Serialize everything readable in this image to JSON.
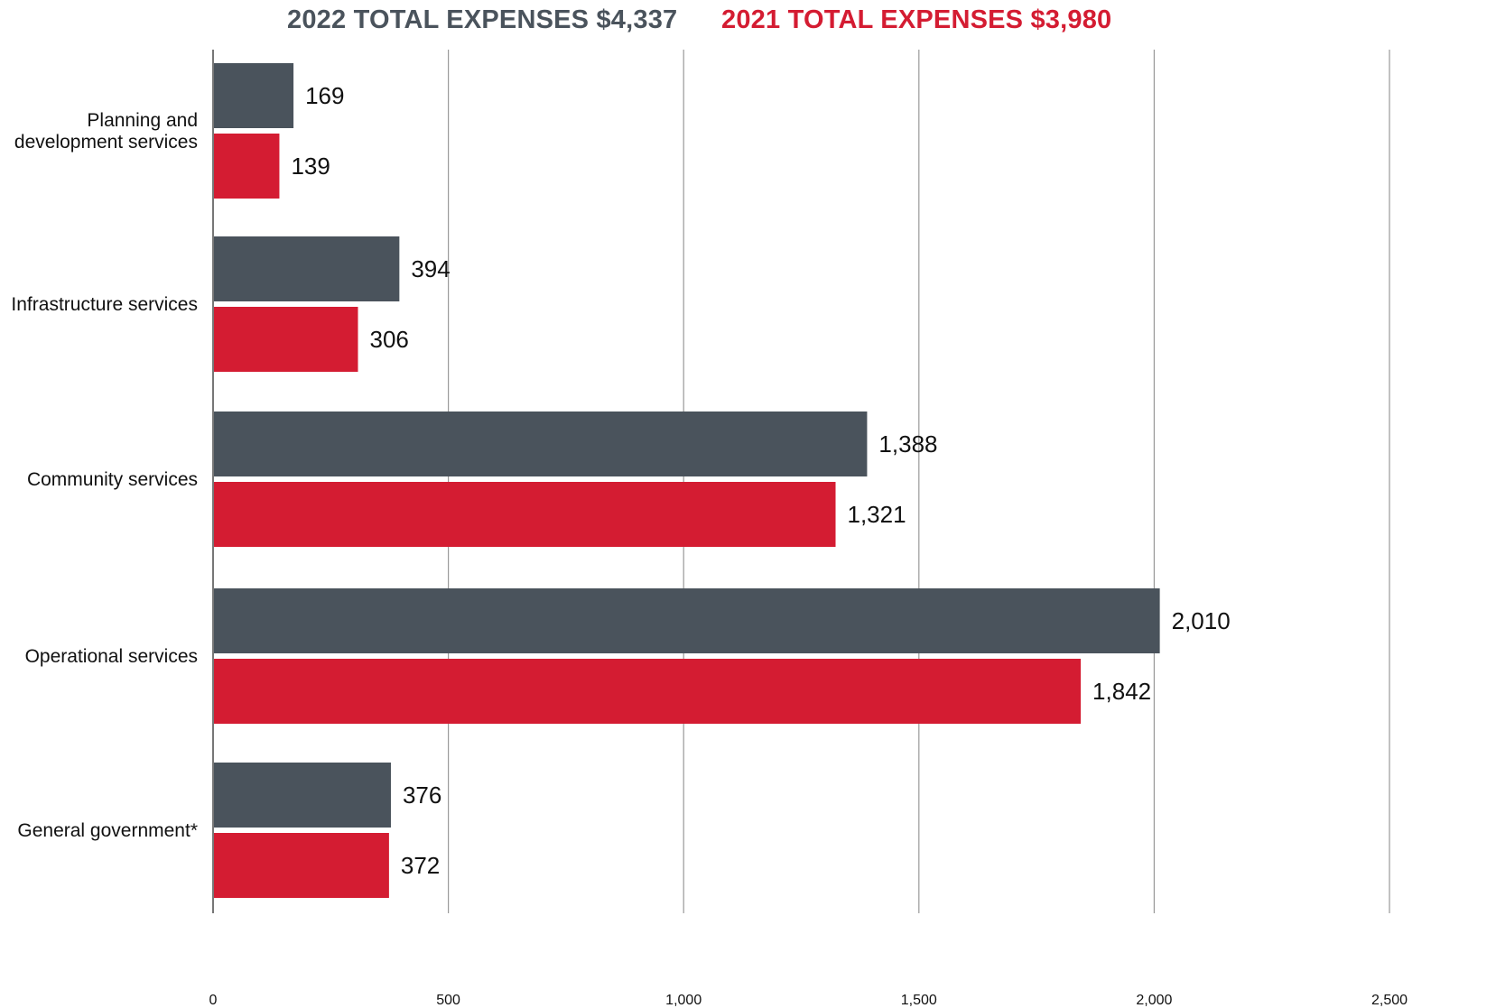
{
  "colors": {
    "series_2022": "#4a535c",
    "series_2021": "#d41c32",
    "gridline": "#9a9a9a",
    "axis": "#555555"
  },
  "chart_data": {
    "type": "bar",
    "orientation": "horizontal",
    "categories": [
      "Planning and development services",
      "Infrastructure services",
      "Community services",
      "Operational services",
      "General government*"
    ],
    "category_label_lines": [
      [
        "Planning and",
        "development services"
      ],
      [
        "Infrastructure services"
      ],
      [
        "Community services"
      ],
      [
        "Operational services"
      ],
      [
        "General government*"
      ]
    ],
    "series": [
      {
        "name": "2022 TOTAL EXPENSES $4,337",
        "color": "#4a535c",
        "values": [
          169,
          394,
          1388,
          2010,
          376
        ],
        "value_labels": [
          "169",
          "394",
          "1,388",
          "2,010",
          "376"
        ]
      },
      {
        "name": "2021 TOTAL EXPENSES $3,980",
        "color": "#d41c32",
        "values": [
          139,
          306,
          1321,
          1842,
          372
        ],
        "value_labels": [
          "139",
          "306",
          "1,321",
          "1,842",
          "372"
        ]
      }
    ],
    "xlim": [
      0,
      2500
    ],
    "xticks": [
      0,
      500,
      1000,
      1500,
      2000,
      2500
    ],
    "xtick_labels": [
      "0",
      "500",
      "1,000",
      "1,500",
      "2,000",
      "2,500"
    ],
    "grid": true,
    "legend_position": "top"
  }
}
